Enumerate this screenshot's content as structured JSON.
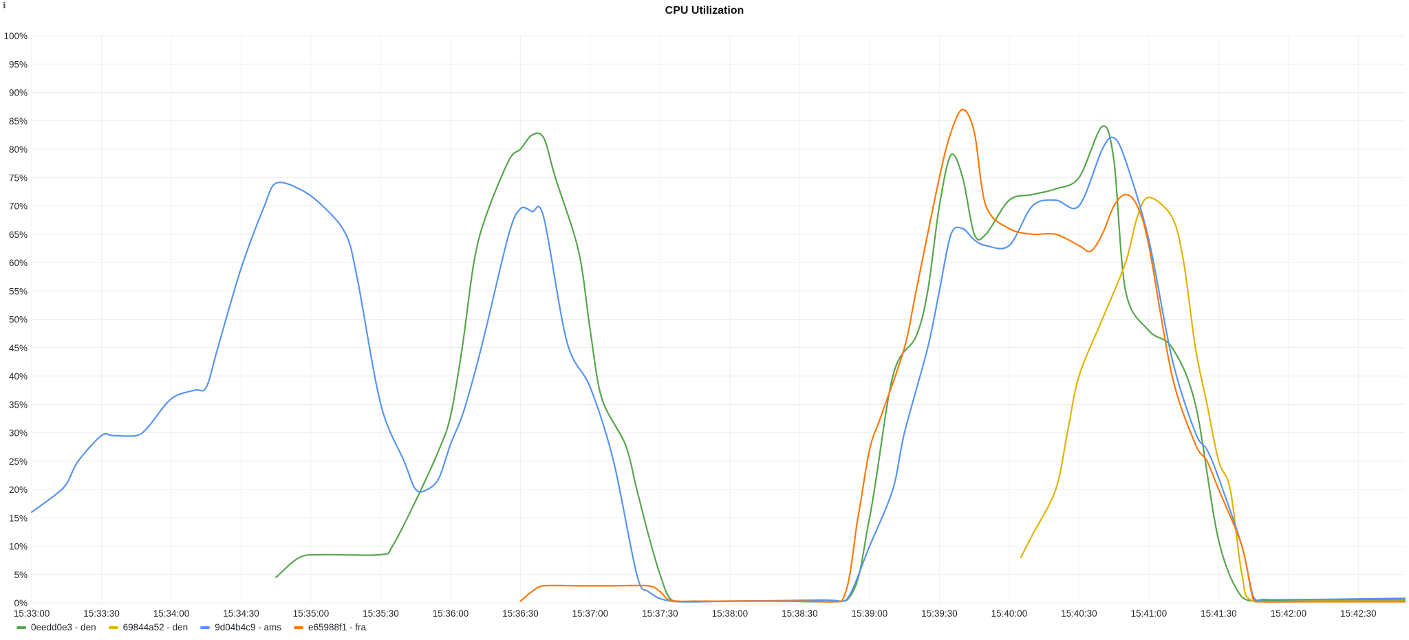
{
  "chart_data": {
    "type": "line",
    "title": "CPU Utilization",
    "xlabel": "",
    "ylabel": "",
    "x_ticks": [
      "15:33:00",
      "15:33:30",
      "15:34:00",
      "15:34:30",
      "15:35:00",
      "15:35:30",
      "15:36:00",
      "15:36:30",
      "15:37:00",
      "15:37:30",
      "15:38:00",
      "15:38:30",
      "15:39:00",
      "15:39:30",
      "15:40:00",
      "15:40:30",
      "15:41:00",
      "15:41:30",
      "15:42:00",
      "15:42:30"
    ],
    "x_ticks_seconds": [
      0,
      30,
      60,
      90,
      120,
      150,
      180,
      210,
      240,
      270,
      300,
      330,
      360,
      390,
      420,
      450,
      480,
      510,
      540,
      570
    ],
    "xlim_seconds": [
      0,
      590
    ],
    "y_ticks": [
      "0%",
      "5%",
      "10%",
      "15%",
      "20%",
      "25%",
      "30%",
      "35%",
      "40%",
      "45%",
      "50%",
      "55%",
      "60%",
      "65%",
      "70%",
      "75%",
      "80%",
      "85%",
      "90%",
      "95%",
      "100%"
    ],
    "ylim": [
      0,
      100
    ],
    "grid": true,
    "legend_position": "bottom-left",
    "series": [
      {
        "name": "0eedd0e3 - den",
        "color": "#56a64b",
        "points": [
          [
            105,
            4.5
          ],
          [
            115,
            8
          ],
          [
            125,
            8.5
          ],
          [
            150,
            8.5
          ],
          [
            155,
            10
          ],
          [
            165,
            18
          ],
          [
            175,
            27
          ],
          [
            180,
            33
          ],
          [
            185,
            45
          ],
          [
            190,
            60
          ],
          [
            195,
            68
          ],
          [
            205,
            78
          ],
          [
            210,
            80
          ],
          [
            215,
            82.5
          ],
          [
            220,
            82
          ],
          [
            225,
            75
          ],
          [
            235,
            62
          ],
          [
            240,
            48
          ],
          [
            245,
            36
          ],
          [
            255,
            28
          ],
          [
            260,
            20
          ],
          [
            265,
            12
          ],
          [
            270,
            5
          ],
          [
            275,
            0.5
          ],
          [
            285,
            0.3
          ],
          [
            300,
            0.3
          ],
          [
            320,
            0.3
          ],
          [
            350,
            0.4
          ],
          [
            360,
            15
          ],
          [
            370,
            40
          ],
          [
            380,
            47
          ],
          [
            385,
            55
          ],
          [
            390,
            70
          ],
          [
            395,
            79
          ],
          [
            400,
            75
          ],
          [
            405,
            65
          ],
          [
            410,
            65
          ],
          [
            420,
            71
          ],
          [
            430,
            72
          ],
          [
            440,
            73
          ],
          [
            450,
            75
          ],
          [
            460,
            84
          ],
          [
            465,
            78
          ],
          [
            470,
            55
          ],
          [
            480,
            48
          ],
          [
            490,
            45
          ],
          [
            500,
            35
          ],
          [
            510,
            11
          ],
          [
            520,
            1
          ],
          [
            530,
            0.4
          ],
          [
            550,
            0.5
          ],
          [
            570,
            0.5
          ],
          [
            590,
            0.5
          ]
        ]
      },
      {
        "name": "69844a52 - den",
        "color": "#e0b400",
        "points": [
          [
            425,
            8
          ],
          [
            430,
            12
          ],
          [
            440,
            20
          ],
          [
            445,
            30
          ],
          [
            450,
            40
          ],
          [
            460,
            50
          ],
          [
            470,
            60
          ],
          [
            475,
            68
          ],
          [
            480,
            71.5
          ],
          [
            490,
            68
          ],
          [
            495,
            60
          ],
          [
            500,
            45
          ],
          [
            505,
            35
          ],
          [
            510,
            25
          ],
          [
            515,
            20
          ],
          [
            520,
            5
          ],
          [
            525,
            0.3
          ],
          [
            550,
            0.3
          ],
          [
            590,
            0.3
          ]
        ]
      },
      {
        "name": "9d04b4c9 - ams",
        "color": "#5794f2",
        "points": [
          [
            0,
            16
          ],
          [
            10,
            19
          ],
          [
            15,
            21
          ],
          [
            20,
            25
          ],
          [
            30,
            29.5
          ],
          [
            35,
            29.5
          ],
          [
            45,
            29.5
          ],
          [
            50,
            31
          ],
          [
            60,
            36
          ],
          [
            70,
            37.5
          ],
          [
            75,
            38
          ],
          [
            80,
            45
          ],
          [
            90,
            59
          ],
          [
            100,
            70
          ],
          [
            105,
            74
          ],
          [
            115,
            73
          ],
          [
            125,
            70
          ],
          [
            135,
            65
          ],
          [
            140,
            57
          ],
          [
            150,
            35
          ],
          [
            160,
            25
          ],
          [
            165,
            20
          ],
          [
            170,
            20
          ],
          [
            175,
            22
          ],
          [
            180,
            28
          ],
          [
            185,
            33
          ],
          [
            190,
            40
          ],
          [
            195,
            48
          ],
          [
            205,
            65
          ],
          [
            210,
            69.5
          ],
          [
            215,
            69
          ],
          [
            220,
            68
          ],
          [
            230,
            46
          ],
          [
            240,
            38
          ],
          [
            250,
            25
          ],
          [
            260,
            5
          ],
          [
            265,
            2
          ],
          [
            275,
            0.3
          ],
          [
            300,
            0.3
          ],
          [
            340,
            0.5
          ],
          [
            350,
            0.5
          ],
          [
            360,
            10
          ],
          [
            370,
            20
          ],
          [
            375,
            30
          ],
          [
            385,
            45
          ],
          [
            390,
            55
          ],
          [
            395,
            65
          ],
          [
            400,
            66
          ],
          [
            405,
            64
          ],
          [
            410,
            63
          ],
          [
            420,
            63
          ],
          [
            430,
            70
          ],
          [
            440,
            71
          ],
          [
            450,
            70
          ],
          [
            460,
            80
          ],
          [
            465,
            82
          ],
          [
            470,
            78
          ],
          [
            480,
            64
          ],
          [
            490,
            43
          ],
          [
            500,
            30
          ],
          [
            505,
            27
          ],
          [
            510,
            22
          ],
          [
            520,
            10
          ],
          [
            525,
            1
          ],
          [
            530,
            0.6
          ],
          [
            550,
            0.6
          ],
          [
            570,
            0.7
          ],
          [
            590,
            0.8
          ]
        ]
      },
      {
        "name": "e65988f1 - fra",
        "color": "#ff780a",
        "points": [
          [
            210,
            0.3
          ],
          [
            215,
            2
          ],
          [
            220,
            3
          ],
          [
            235,
            3
          ],
          [
            250,
            3
          ],
          [
            265,
            3
          ],
          [
            270,
            2
          ],
          [
            275,
            0.4
          ],
          [
            290,
            0.3
          ],
          [
            300,
            0.3
          ],
          [
            330,
            0.3
          ],
          [
            348,
            0.3
          ],
          [
            355,
            15
          ],
          [
            360,
            27
          ],
          [
            365,
            33
          ],
          [
            375,
            45
          ],
          [
            380,
            55
          ],
          [
            390,
            75
          ],
          [
            395,
            83
          ],
          [
            400,
            87
          ],
          [
            405,
            83
          ],
          [
            410,
            70
          ],
          [
            420,
            66
          ],
          [
            430,
            65
          ],
          [
            440,
            65
          ],
          [
            450,
            63
          ],
          [
            455,
            62
          ],
          [
            460,
            65
          ],
          [
            465,
            70
          ],
          [
            470,
            72
          ],
          [
            475,
            70
          ],
          [
            480,
            63
          ],
          [
            490,
            40
          ],
          [
            500,
            28
          ],
          [
            505,
            25
          ],
          [
            510,
            20
          ],
          [
            520,
            10
          ],
          [
            525,
            0.5
          ],
          [
            530,
            0.2
          ],
          [
            560,
            0.2
          ],
          [
            590,
            0.2
          ]
        ]
      }
    ]
  },
  "ui": {
    "info_icon": "info-icon",
    "info_glyph": "ℹ"
  }
}
